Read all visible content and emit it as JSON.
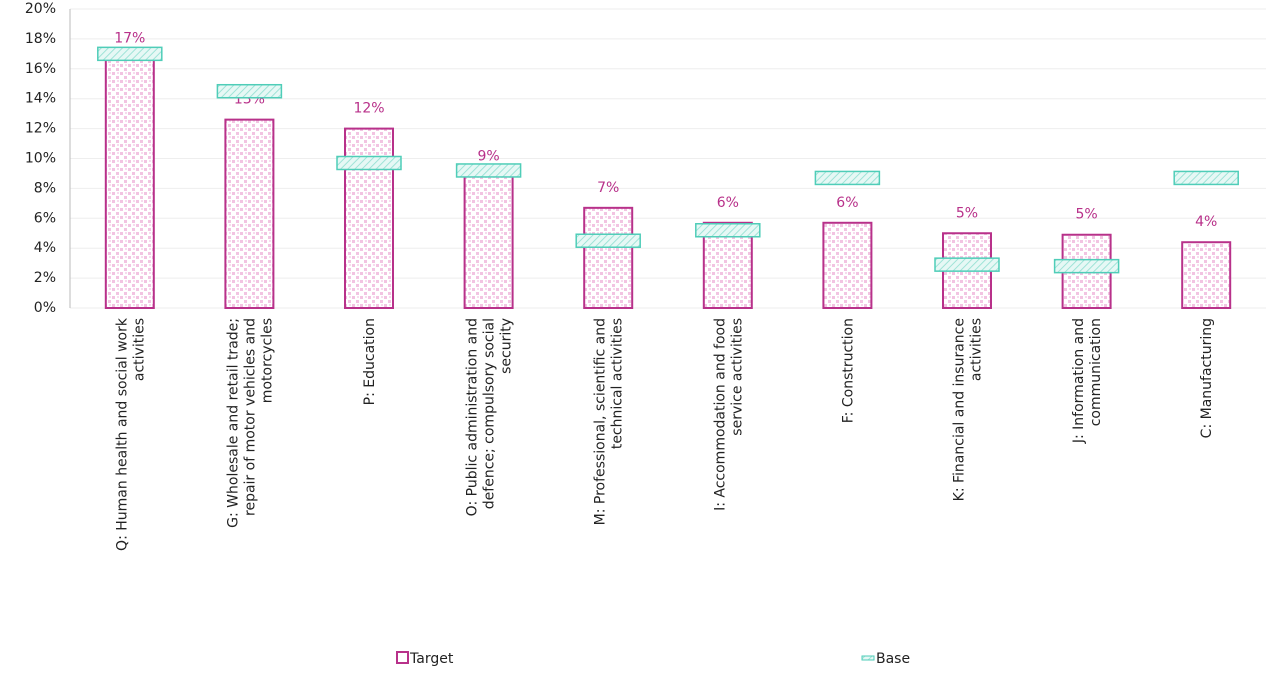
{
  "chart_data": {
    "type": "bar",
    "categories": [
      "Q: Human health and social work activities",
      "G: Wholesale and retail trade; repair of motor vehicles and motorcycles",
      "P: Education",
      "O: Public administration and defence; compulsory social security",
      "M: Professional, scientific and technical activities",
      "I: Accommodation and food service activities",
      "F: Construction",
      "K: Financial and insurance activities",
      "J: Information and communication",
      "C: Manufacturing"
    ],
    "series": [
      {
        "name": "Target",
        "color": "#b8318a",
        "values": [
          16.7,
          12.6,
          12.0,
          8.8,
          6.7,
          5.7,
          5.7,
          5.0,
          4.9,
          4.4
        ],
        "value_labels": [
          "17%",
          "13%",
          "12%",
          "9%",
          "7%",
          "6%",
          "6%",
          "5%",
          "5%",
          "4%"
        ]
      },
      {
        "name": "Base",
        "color": "#4fcdb8",
        "values": [
          17.0,
          14.5,
          9.7,
          9.2,
          4.5,
          5.2,
          8.7,
          2.9,
          2.8,
          8.7
        ]
      }
    ],
    "ylim": [
      0,
      20
    ],
    "yticks": [
      {
        "value": 0,
        "label": "0%"
      },
      {
        "value": 2,
        "label": "2%"
      },
      {
        "value": 4,
        "label": "4%"
      },
      {
        "value": 6,
        "label": "6%"
      },
      {
        "value": 8,
        "label": "8%"
      },
      {
        "value": 10,
        "label": "10%"
      },
      {
        "value": 12,
        "label": "12%"
      },
      {
        "value": 14,
        "label": "14%"
      },
      {
        "value": 16,
        "label": "16%"
      },
      {
        "value": 18,
        "label": "18%"
      },
      {
        "value": 20,
        "label": "20%"
      }
    ],
    "grid": true
  }
}
